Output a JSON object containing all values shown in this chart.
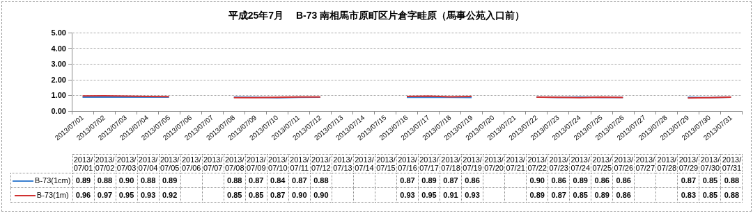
{
  "chart_data": {
    "type": "line",
    "title": "平成25年7月　 B-73 南相馬市原町区片倉字畦原（馬事公苑入口前）",
    "categories": [
      "2013/07/01",
      "2013/07/02",
      "2013/07/03",
      "2013/07/04",
      "2013/07/05",
      "2013/07/06",
      "2013/07/07",
      "2013/07/08",
      "2013/07/09",
      "2013/07/10",
      "2013/07/11",
      "2013/07/12",
      "2013/07/13",
      "2013/07/14",
      "2013/07/15",
      "2013/07/16",
      "2013/07/17",
      "2013/07/18",
      "2013/07/19",
      "2013/07/20",
      "2013/07/21",
      "2013/07/22",
      "2013/07/23",
      "2013/07/24",
      "2013/07/25",
      "2013/07/26",
      "2013/07/27",
      "2013/07/28",
      "2013/07/29",
      "2013/07/30",
      "2013/07/31"
    ],
    "series": [
      {
        "name": "B-73(1cm)",
        "color": "#3a7fd0",
        "values": [
          0.89,
          0.88,
          0.9,
          0.88,
          0.89,
          null,
          null,
          0.88,
          0.87,
          0.84,
          0.87,
          0.88,
          null,
          null,
          null,
          0.87,
          0.89,
          0.87,
          0.86,
          null,
          null,
          0.9,
          0.86,
          0.89,
          0.86,
          0.86,
          null,
          null,
          0.87,
          0.85,
          0.88
        ],
        "value_labels": [
          "0.89",
          "0.88",
          "0.90",
          "0.88",
          "0.89",
          null,
          null,
          "0.88",
          "0.87",
          "0.84",
          "0.87",
          "0.88",
          null,
          null,
          null,
          "0.87",
          "0.89",
          "0.87",
          "0.86",
          null,
          null,
          "0.90",
          "0.86",
          "0.89",
          "0.86",
          "0.86",
          null,
          null,
          "0.87",
          "0.85",
          "0.88"
        ]
      },
      {
        "name": "B-73(1m)",
        "color": "#d03030",
        "values": [
          0.96,
          0.97,
          0.95,
          0.93,
          0.92,
          null,
          null,
          0.85,
          0.85,
          0.87,
          0.9,
          0.9,
          null,
          null,
          null,
          0.93,
          0.95,
          0.91,
          0.93,
          null,
          null,
          0.89,
          0.87,
          0.85,
          0.89,
          0.86,
          null,
          null,
          0.83,
          0.85,
          0.88
        ],
        "value_labels": [
          "0.96",
          "0.97",
          "0.95",
          "0.93",
          "0.92",
          null,
          null,
          "0.85",
          "0.85",
          "0.87",
          "0.90",
          "0.90",
          null,
          null,
          null,
          "0.93",
          "0.95",
          "0.91",
          "0.93",
          null,
          null,
          "0.89",
          "0.87",
          "0.85",
          "0.89",
          "0.86",
          null,
          null,
          "0.83",
          "0.85",
          "0.88"
        ]
      }
    ],
    "ylim": [
      0,
      5
    ],
    "yticks": [
      {
        "value": 0,
        "label": "0.00"
      },
      {
        "value": 1,
        "label": "1.00"
      },
      {
        "value": 2,
        "label": "2.00"
      },
      {
        "value": 3,
        "label": "3.00"
      },
      {
        "value": 4,
        "label": "4.00"
      },
      {
        "value": 5,
        "label": "5.00"
      }
    ],
    "grid": "y",
    "legend": "bottom",
    "marker": "none",
    "line_style": "solid"
  }
}
